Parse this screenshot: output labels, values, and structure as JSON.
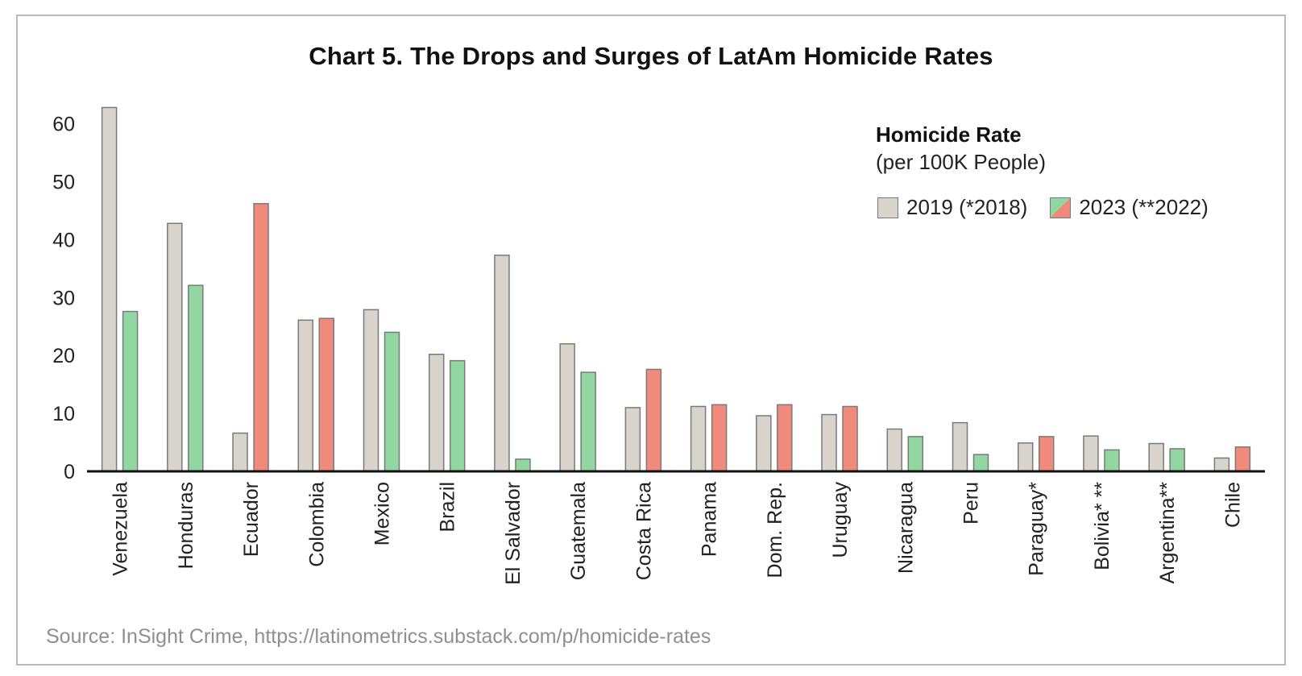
{
  "chart_data": {
    "type": "bar",
    "title": "Chart 5. The Drops and Surges of LatAm Homicide Rates",
    "legend_title": "Homicide Rate",
    "legend_subtitle": "(per 100K People)",
    "series": [
      {
        "name": "2019 (*2018)",
        "values": [
          62.8,
          42.8,
          6.6,
          26.1,
          27.9,
          20.2,
          37.3,
          22.0,
          11.0,
          11.2,
          9.6,
          9.8,
          7.3,
          8.4,
          4.9,
          6.1,
          4.8,
          2.3
        ]
      },
      {
        "name": "2023 (**2022)",
        "values": [
          27.6,
          32.1,
          46.2,
          26.4,
          24.0,
          19.1,
          2.1,
          17.1,
          17.6,
          11.5,
          11.5,
          11.2,
          6.0,
          2.9,
          6.0,
          3.7,
          3.9,
          4.2
        ]
      }
    ],
    "bar_2023_color_type": [
      "down",
      "down",
      "up",
      "up",
      "down",
      "down",
      "down",
      "down",
      "up",
      "up",
      "up",
      "up",
      "down",
      "down",
      "up",
      "down",
      "down",
      "up"
    ],
    "categories": [
      "Venezuela",
      "Honduras",
      "Ecuador",
      "Colombia",
      "Mexico",
      "Brazil",
      "El Salvador",
      "Guatemala",
      "Costa Rica",
      "Panama",
      "Dom. Rep.",
      "Uruguay",
      "Nicaragua",
      "Peru",
      "Paraguay*",
      "Bolivia* **",
      "Argentina**",
      "Chile"
    ],
    "yticks": [
      0,
      10,
      20,
      30,
      40,
      50,
      60
    ],
    "ylim": [
      0,
      63
    ],
    "grid": false,
    "legend_position": "top-right",
    "colors": {
      "y2019": "#d8d3cb",
      "down": "#92d6a1",
      "up": "#f08a7b",
      "outline": "#7a7a7a",
      "axis": "#111111"
    },
    "source": "Source: InSight Crime, https://latinometrics.substack.com/p/homicide-rates"
  }
}
